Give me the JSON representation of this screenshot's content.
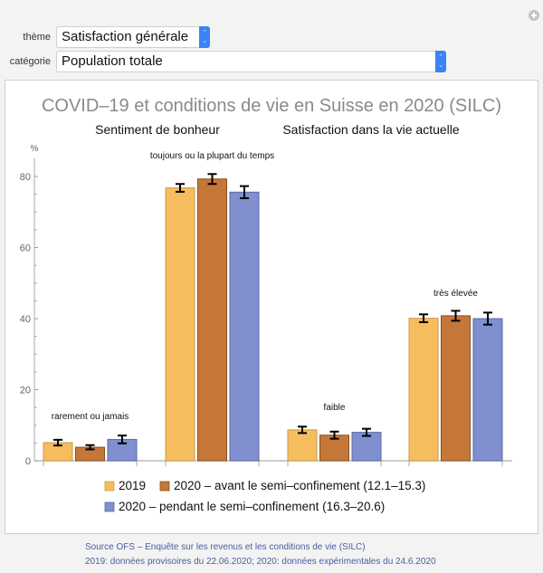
{
  "controls": {
    "theme": {
      "label": "thème",
      "value": "Satisfaction générale"
    },
    "category": {
      "label": "catégorie",
      "value": "Population totale"
    }
  },
  "icons": {
    "add": "plus-circle-icon",
    "stepper": "stepper-arrows-icon"
  },
  "footer": {
    "line1": "Source OFS – Enquête sur les revenus et les conditions de vie (SILC)",
    "line2": "2019: données provisoires du 22.06.2020; 2020: données expérimentales du 24.6.2020"
  },
  "chart_data": {
    "type": "bar",
    "title": "COVID–19 et conditions de vie en Suisse en 2020 (SILC)",
    "subtitles": [
      "Sentiment de bonheur",
      "Satisfaction dans la vie actuelle"
    ],
    "ylabel": "%",
    "xlabel": "",
    "ylim": [
      0,
      85
    ],
    "yticks": [
      0,
      20,
      40,
      60,
      80
    ],
    "grid": false,
    "legend_position": "bottom",
    "categories": [
      "rarement ou jamais",
      "toujours ou la plupart du temps",
      "faible",
      "très élevée"
    ],
    "series": [
      {
        "name": "2019",
        "color": "#f6bd5f",
        "values": [
          5.1,
          76.8,
          8.7,
          40.1
        ],
        "errors": [
          0.8,
          1.1,
          0.9,
          1.1
        ]
      },
      {
        "name": "2020 – avant le semi–confinement (12.1–15.3)",
        "color": "#c5773a",
        "values": [
          3.8,
          79.3,
          7.2,
          40.8
        ],
        "errors": [
          0.6,
          1.4,
          1.0,
          1.4
        ]
      },
      {
        "name": "2020 – pendant le semi–confinement (16.3–20.6)",
        "color": "#7f8fcf",
        "values": [
          6.0,
          75.6,
          8.0,
          40.0
        ],
        "errors": [
          1.1,
          1.7,
          1.0,
          1.7
        ]
      }
    ]
  }
}
